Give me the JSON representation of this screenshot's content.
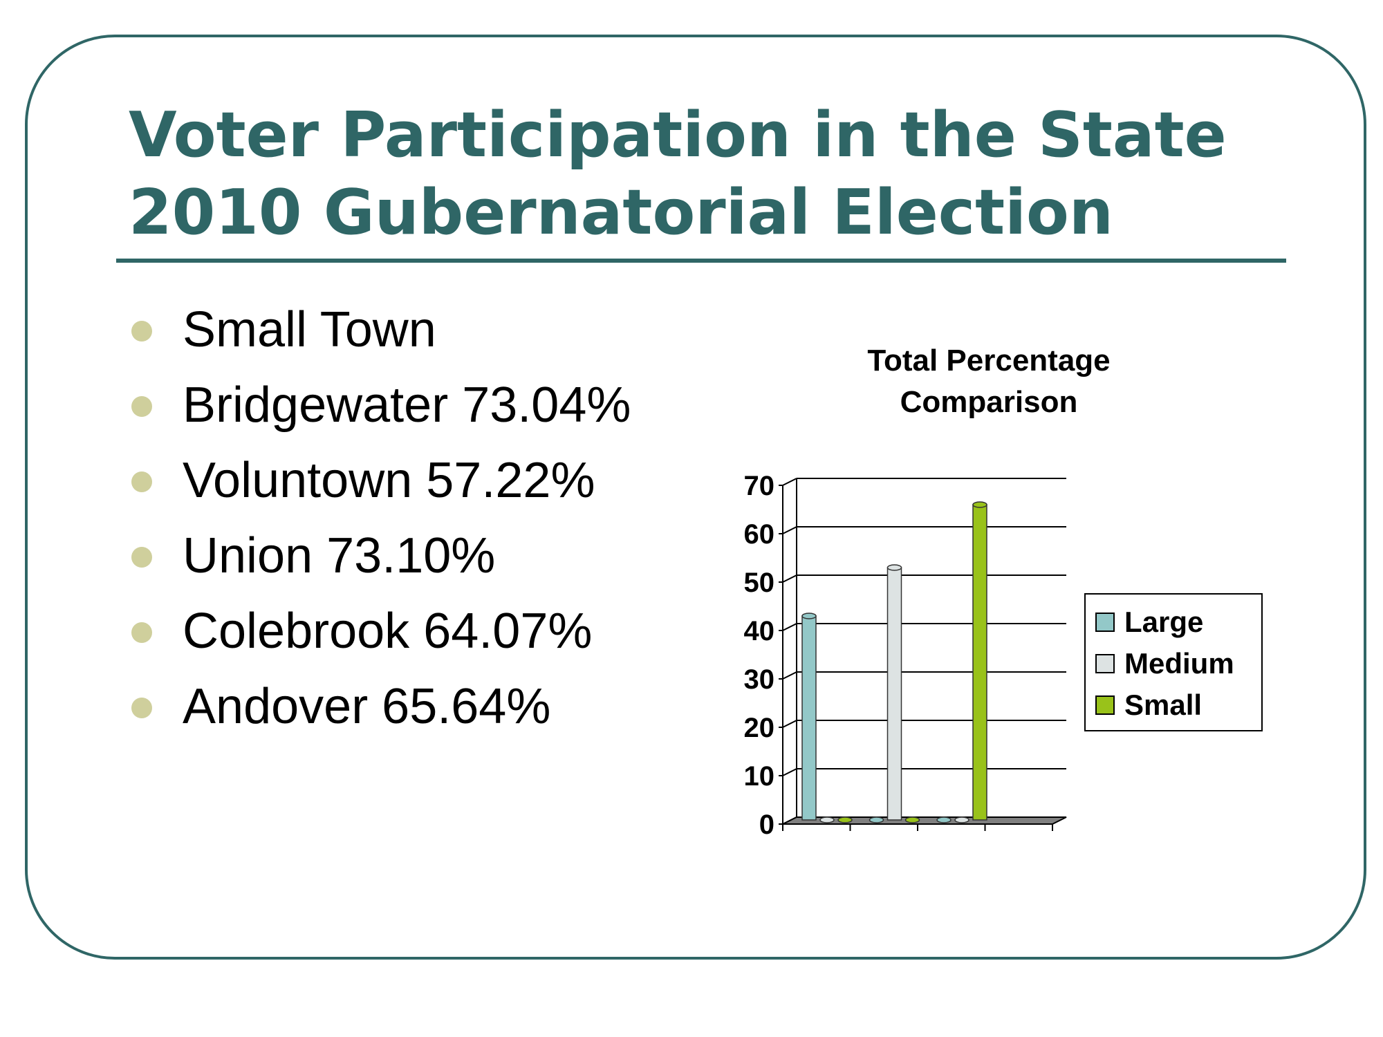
{
  "slide": {
    "title_lines": [
      "Voter Participation in the State",
      "2010 Gubernatorial Election"
    ],
    "bullets": [
      "Small Town",
      "Bridgewater 73.04%",
      "Voluntown 57.22%",
      "Union 73.10%",
      "Colebrook 64.07%",
      "Andover 65.64%"
    ]
  },
  "colors": {
    "frame": "#2f6666",
    "title": "#2f6666",
    "bullet_dot": "#cfcf9c"
  },
  "chart_data": {
    "type": "bar",
    "title_lines": [
      "Total Percentage",
      "Comparison"
    ],
    "categories": [
      "",
      "",
      ""
    ],
    "series": [
      {
        "name": "Large",
        "color": "#93c8c8",
        "values": [
          43,
          0,
          0
        ]
      },
      {
        "name": "Medium",
        "color": "#dde3e3",
        "values": [
          0,
          53,
          0
        ]
      },
      {
        "name": "Small",
        "color": "#99c21a",
        "values": [
          0,
          0,
          66
        ]
      }
    ],
    "yticks": [
      "0",
      "10",
      "20",
      "30",
      "40",
      "50",
      "60",
      "70"
    ],
    "ylim": [
      0,
      70
    ],
    "grid": true,
    "legend_position": "right",
    "three_d": true
  }
}
